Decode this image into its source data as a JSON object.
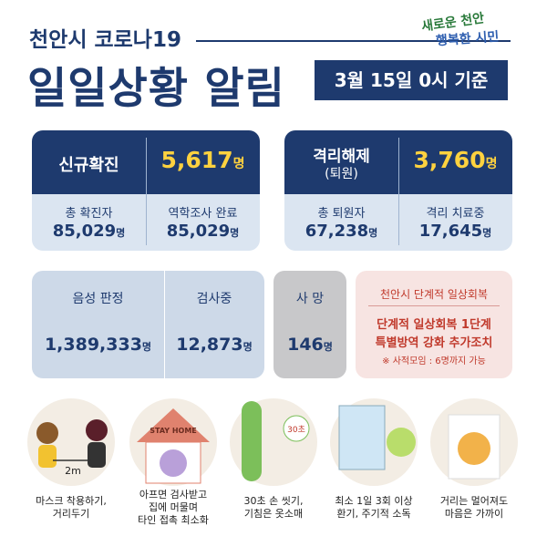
{
  "header": {
    "subtitle": "천안시 코로나19",
    "title": "일일상황 알림",
    "date": "3월 15일 0시 기준",
    "logo": [
      "새로운 천안",
      "행복한 시민"
    ]
  },
  "confirmed": {
    "label": "신규확진",
    "value": "5,617",
    "unit": "명",
    "stats": [
      {
        "label": "총 확진자",
        "value": "85,029",
        "unit": "명"
      },
      {
        "label": "역학조사 완료",
        "value": "85,029",
        "unit": "명"
      }
    ]
  },
  "released": {
    "label": "격리해제",
    "sublabel": "(퇴원)",
    "value": "3,760",
    "unit": "명",
    "stats": [
      {
        "label": "총 퇴원자",
        "value": "67,238",
        "unit": "명"
      },
      {
        "label": "격리 치료중",
        "value": "17,645",
        "unit": "명"
      }
    ]
  },
  "tests": [
    {
      "label": "음성 판정",
      "value": "1,389,333",
      "unit": "명"
    },
    {
      "label": "검사중",
      "value": "12,873",
      "unit": "명"
    }
  ],
  "deaths": {
    "label": "사 망",
    "value": "146",
    "unit": "명"
  },
  "notice": {
    "title": "천안시 단계적 일상회복",
    "lines": [
      "단계적 일상회복 1단계",
      "특별방역 강화 추가조치"
    ],
    "note": "※ 사적모임 : 6명까지 가능"
  },
  "guidelines": [
    {
      "icon_text": "2m",
      "caption": [
        "마스크 착용하기,",
        "거리두기"
      ]
    },
    {
      "icon_text": "STAY HOME",
      "caption": [
        "아프면 검사받고",
        "집에 머물며",
        "타인 접촉 최소화"
      ]
    },
    {
      "icon_text": "30초",
      "caption": [
        "30초 손 씻기,",
        "기침은 옷소매"
      ]
    },
    {
      "caption": [
        "최소 1일 3회 이상",
        "환기, 주기적 소독"
      ]
    },
    {
      "caption": [
        "거리는 멀어져도",
        "마음은 가까이"
      ]
    }
  ]
}
